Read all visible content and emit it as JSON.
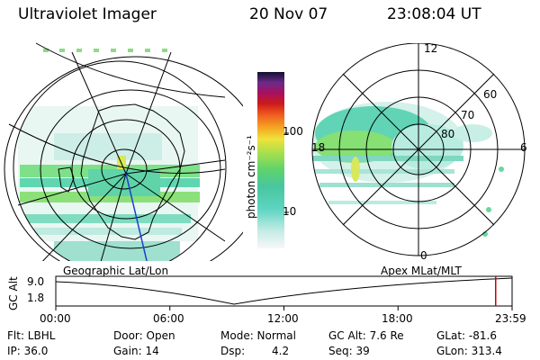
{
  "header": {
    "instrument": "Ultraviolet Imager",
    "date": "20 Nov 07",
    "time": "23:08:04 UT"
  },
  "colorbar": {
    "label": "photon cm⁻²s⁻¹",
    "ticks": [
      "100",
      "10"
    ]
  },
  "left_map": {
    "caption": "Geographic Lat/Lon"
  },
  "right_map": {
    "caption": "Apex MLat/MLT",
    "mlt_labels": [
      "12",
      "18",
      "6",
      "0"
    ],
    "lat_labels": [
      "60",
      "70",
      "80"
    ]
  },
  "timeline": {
    "ylabel": "GC Alt",
    "ytick_top": "9.0",
    "ytick_bottom": "1.8",
    "xticks": [
      "00:00",
      "06:00",
      "12:00",
      "18:00",
      "23:59"
    ],
    "current_fraction": 0.964
  },
  "info": {
    "flt": "Flt: LBHL",
    "ip": "IP: 36.0",
    "door": "Door: Open",
    "gain": "Gain: 14",
    "mode": "Mode: Normal",
    "dsp_label": "Dsp:",
    "dsp_value": "4.2",
    "gcalt": "GC Alt: 7.6 Re",
    "seq": "Seq: 39",
    "glat": "GLat: -81.6",
    "glon": "GLon: 313.4"
  },
  "colors": {
    "marker": "#cc0000",
    "meridian": "#1a3fd0"
  }
}
